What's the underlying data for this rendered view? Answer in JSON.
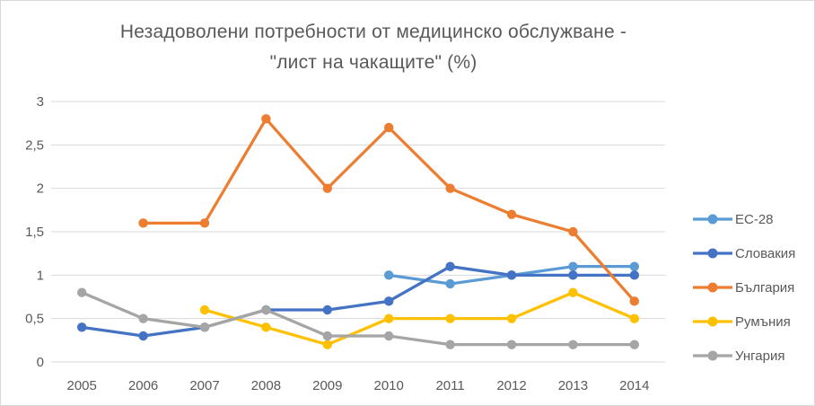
{
  "window": {
    "background": "#ffffff",
    "border_color": "#d9d9d9"
  },
  "chart_data": {
    "type": "line",
    "title_lines": [
      "Незадоволени потребности от медицинско обслужване -",
      "\"лист на чакащите\" (%)"
    ],
    "categories": [
      "2005",
      "2006",
      "2007",
      "2008",
      "2009",
      "2010",
      "2011",
      "2012",
      "2013",
      "2014"
    ],
    "series": [
      {
        "name": "ЕС-28",
        "color": "#5B9BD5",
        "values": [
          null,
          null,
          null,
          null,
          null,
          1.0,
          0.9,
          1.0,
          1.1,
          1.1
        ]
      },
      {
        "name": "Словакия",
        "color": "#4472C4",
        "values": [
          0.4,
          0.3,
          0.4,
          0.6,
          0.6,
          0.7,
          1.1,
          1.0,
          1.0,
          1.0
        ]
      },
      {
        "name": "България",
        "color": "#ED7D31",
        "values": [
          null,
          1.6,
          1.6,
          2.8,
          2.0,
          2.7,
          2.0,
          1.7,
          1.5,
          0.7
        ]
      },
      {
        "name": "Румъния",
        "color": "#FFC000",
        "values": [
          null,
          null,
          0.6,
          0.4,
          0.2,
          0.5,
          0.5,
          0.5,
          0.8,
          0.5
        ]
      },
      {
        "name": "Унгария",
        "color": "#A5A5A5",
        "values": [
          0.8,
          0.5,
          0.4,
          0.6,
          0.3,
          0.3,
          0.2,
          0.2,
          0.2,
          0.2
        ]
      }
    ],
    "y_ticks": [
      "3",
      "2,5",
      "2",
      "1,5",
      "1",
      "0,5",
      "0"
    ],
    "y_tick_values": [
      3,
      2.5,
      2,
      1.5,
      1,
      0.5,
      0
    ],
    "ylim": [
      0,
      3
    ],
    "grid": true,
    "legend_position": "right",
    "text_color": "#595959",
    "grid_color": "#D9D9D9"
  }
}
